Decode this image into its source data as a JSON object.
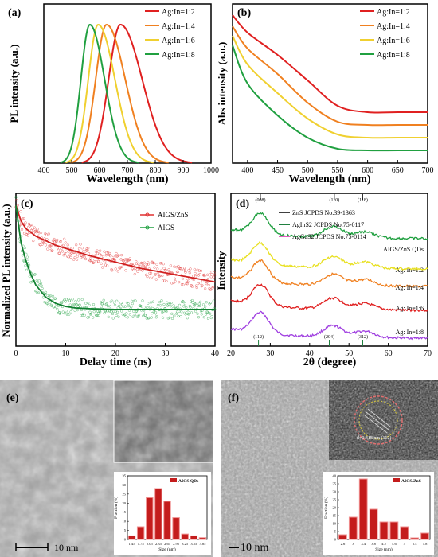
{
  "panels_meta": {
    "a": "(a)",
    "b": "(b)",
    "c": "(c)",
    "d": "(d)",
    "e": "(e)",
    "f": "(f)"
  },
  "chart_data": [
    {
      "panel": "(a)",
      "type": "line",
      "xlabel": "Wavelength (nm)",
      "ylabel": "PL intensity (a.u.)",
      "xlim": [
        400,
        1000
      ],
      "xticks": [
        400,
        500,
        600,
        700,
        800,
        900,
        1000
      ],
      "series": [
        {
          "name": "Ag:In=1:2",
          "color": "#e02020",
          "peak": 675,
          "sigma_left": 60,
          "sigma_right": 110,
          "amplitude": 1.0
        },
        {
          "name": "Ag:In=1:4",
          "color": "#f08020",
          "peak": 625,
          "sigma_left": 55,
          "sigma_right": 95,
          "amplitude": 1.0
        },
        {
          "name": "Ag:In=1:6",
          "color": "#f0d030",
          "peak": 595,
          "sigma_left": 50,
          "sigma_right": 85,
          "amplitude": 1.0
        },
        {
          "name": "Ag:In=1:8",
          "color": "#20a040",
          "peak": 565,
          "sigma_left": 45,
          "sigma_right": 75,
          "amplitude": 1.0
        }
      ]
    },
    {
      "panel": "(b)",
      "type": "line",
      "xlabel": "Wavelength (nm)",
      "ylabel": "Abs intensity (a.u.)",
      "xlim": [
        375,
        700
      ],
      "xticks": [
        400,
        450,
        500,
        550,
        600,
        650,
        700
      ],
      "series": [
        {
          "name": "Ag:In=1:2",
          "color": "#e02020",
          "x": [
            375,
            400,
            450,
            500,
            550,
            600,
            650,
            700
          ],
          "y": [
            0.93,
            0.82,
            0.68,
            0.52,
            0.36,
            0.32,
            0.32,
            0.32
          ]
        },
        {
          "name": "Ag:In=1:4",
          "color": "#f08020",
          "x": [
            375,
            400,
            450,
            500,
            550,
            600,
            650,
            700
          ],
          "y": [
            0.86,
            0.72,
            0.56,
            0.38,
            0.26,
            0.24,
            0.24,
            0.24
          ]
        },
        {
          "name": "Ag:In=1:6",
          "color": "#f0d030",
          "x": [
            375,
            400,
            450,
            500,
            550,
            600,
            650,
            700
          ],
          "y": [
            0.8,
            0.62,
            0.44,
            0.28,
            0.18,
            0.16,
            0.16,
            0.16
          ]
        },
        {
          "name": "Ag:In=1:8",
          "color": "#20a040",
          "x": [
            375,
            400,
            450,
            500,
            550,
            600,
            650,
            700
          ],
          "y": [
            0.74,
            0.5,
            0.3,
            0.16,
            0.09,
            0.08,
            0.08,
            0.08
          ]
        }
      ]
    },
    {
      "panel": "(c)",
      "type": "scatter",
      "xlabel": "Delay time (ns)",
      "ylabel": "Normalized PL intensity (a.u.)",
      "xlim": [
        0,
        40
      ],
      "ylim": [
        0,
        1
      ],
      "xticks": [
        0,
        10,
        20,
        30,
        40
      ],
      "series": [
        {
          "name": "AIGS/ZnS",
          "color": "#e03030",
          "x": [
            0,
            1,
            2,
            4,
            6,
            8,
            10,
            15,
            20,
            25,
            30,
            35,
            40
          ],
          "y": [
            0.92,
            0.82,
            0.77,
            0.72,
            0.69,
            0.66,
            0.64,
            0.59,
            0.55,
            0.51,
            0.48,
            0.45,
            0.42
          ]
        },
        {
          "name": "AIGS",
          "color": "#20a040",
          "x": [
            0,
            1,
            2,
            3,
            4,
            6,
            8,
            10,
            12,
            15,
            20,
            25,
            30,
            35,
            40
          ],
          "y": [
            0.92,
            0.68,
            0.56,
            0.47,
            0.4,
            0.32,
            0.28,
            0.26,
            0.25,
            0.245,
            0.24,
            0.24,
            0.24,
            0.24,
            0.24
          ]
        }
      ]
    },
    {
      "panel": "(d)",
      "type": "line",
      "xlabel": "2θ (degree)",
      "ylabel": "Intensity",
      "xlim": [
        20,
        70
      ],
      "xticks": [
        20,
        30,
        40,
        50,
        60,
        70
      ],
      "top_ticks": [
        {
          "label": "(008)",
          "x": 27.5
        },
        {
          "label": "(110)",
          "x": 46.3
        },
        {
          "label": "(118)",
          "x": 53.5
        }
      ],
      "bottom_ticks": [
        {
          "label": "(112)",
          "x": 27.0
        },
        {
          "label": "(204)",
          "x": 45.0
        },
        {
          "label": "(312)",
          "x": 53.5
        }
      ],
      "reference_legend": [
        {
          "name": "ZnS JCPDS No.39-1363",
          "color": "#404040"
        },
        {
          "name": "AgInS2 JCPDS  No.75-0117",
          "color": "#208040"
        },
        {
          "name": "AgGaS2 JCPDS No.75-0114",
          "color": "#e060c0"
        }
      ],
      "series": [
        {
          "name": "AIGS/ZnS QDs",
          "color": "#a040e0",
          "offset": 4
        },
        {
          "name": "Ag:  In=1:2",
          "color": "#e02020",
          "offset": 3
        },
        {
          "name": "Ag:  In=1:4",
          "color": "#f08020",
          "offset": 2
        },
        {
          "name": "Ag:  In=1:6",
          "color": "#e8e020",
          "offset": 1
        },
        {
          "name": "Ag:  In=1:8",
          "color": "#20a040",
          "offset": 0
        }
      ]
    },
    {
      "panel": "(e)",
      "type": "bar",
      "title": "AIGS QDs",
      "xlabel": "Size (nm)",
      "ylabel": "Fraction (%)",
      "ylim": [
        0,
        35
      ],
      "yticks": [
        0,
        5,
        10,
        15,
        20,
        25,
        30,
        35
      ],
      "categories": [
        "1.45",
        "1.75",
        "2.05",
        "2.35",
        "2.65",
        "2.95",
        "3.25",
        "3.55",
        "3.85"
      ],
      "values": [
        2,
        7,
        23,
        28,
        21,
        12,
        3,
        2,
        1
      ]
    },
    {
      "panel": "(f)",
      "type": "bar",
      "title": "AIGS/ZnS",
      "xlabel": "Size (nm)",
      "ylabel": "Fraction (%)",
      "ylim": [
        0,
        40
      ],
      "yticks": [
        0,
        5,
        10,
        15,
        20,
        25,
        30,
        35,
        40
      ],
      "categories": [
        "2.6",
        "3",
        "3.4",
        "3.8",
        "4.2",
        "4.6",
        "5",
        "5.4",
        "5.8"
      ],
      "values": [
        3,
        14,
        38,
        19,
        11,
        11,
        8,
        1,
        4
      ]
    }
  ],
  "micrographs": {
    "e_scale": "10 nm",
    "f_scale": "10 nm",
    "f_inset_annotation": "d=0.318 nm (112)"
  }
}
